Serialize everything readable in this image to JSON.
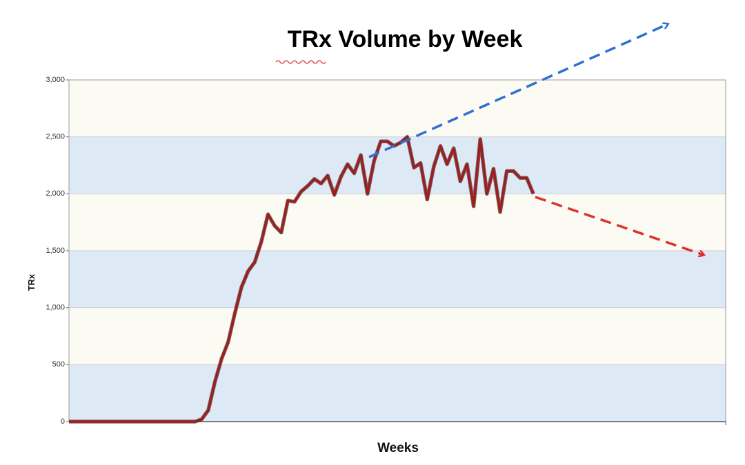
{
  "chart_data": {
    "type": "line",
    "title": "TRx Volume by Week",
    "x_label": "Weeks",
    "y_label": "TRx",
    "categories": [
      null,
      null,
      null,
      null,
      null,
      null,
      null,
      null,
      null,
      null,
      null,
      null,
      null,
      null,
      null,
      null,
      null,
      null,
      null,
      null,
      null,
      null,
      null,
      null,
      null,
      null,
      null,
      null,
      null,
      null,
      null,
      null,
      null,
      null,
      null,
      null,
      null,
      null,
      null,
      null,
      null,
      null,
      null,
      null,
      null,
      null,
      null,
      null,
      null,
      null,
      null,
      null,
      null,
      null,
      null,
      null,
      null,
      null,
      null,
      null,
      null,
      null,
      null,
      null,
      null,
      null,
      null,
      null,
      null,
      null,
      null,
      null,
      null,
      null,
      null,
      null,
      null,
      null,
      null,
      null,
      null,
      null,
      null,
      null,
      null,
      null,
      null,
      null,
      null,
      null,
      null,
      null,
      null,
      null,
      null,
      null,
      null,
      null,
      null,
      null
    ],
    "series": [
      {
        "name": "TRx",
        "color": "#9b1f1f",
        "values": [
          0,
          0,
          0,
          0,
          0,
          0,
          0,
          0,
          0,
          0,
          0,
          0,
          0,
          0,
          0,
          0,
          0,
          0,
          0,
          0,
          20,
          100,
          350,
          550,
          700,
          950,
          1180,
          1320,
          1400,
          1580,
          1820,
          1720,
          1660,
          1940,
          1930,
          2020,
          2070,
          2130,
          2090,
          2160,
          1990,
          2150,
          2260,
          2180,
          2340,
          2000,
          2290,
          2460,
          2460,
          2420,
          2450,
          2500,
          2230,
          2270,
          1950,
          2240,
          2420,
          2260,
          2400,
          2110,
          2260,
          1890,
          2480,
          2000,
          2220,
          1840,
          2200,
          2200,
          2140,
          2140,
          2000,
          null,
          null,
          null,
          null,
          null,
          null,
          null,
          null,
          null,
          null,
          null,
          null,
          null,
          null,
          null,
          null,
          null,
          null,
          null,
          null,
          null,
          null,
          null,
          null,
          null,
          null,
          null,
          null,
          null
        ]
      }
    ],
    "ylim": [
      0,
      3000
    ],
    "yticks": [
      0,
      500,
      {
        "value": 1000,
        "label": "1,000"
      },
      {
        "value": 1500,
        "label": "1,500"
      },
      {
        "value": 2000,
        "label": "2,000"
      },
      {
        "value": 2500,
        "label": "2,500"
      },
      {
        "value": 3000,
        "label": "3,000"
      }
    ],
    "band_colors": [
      "#dde9f5",
      "#fbfaf3"
    ]
  }
}
